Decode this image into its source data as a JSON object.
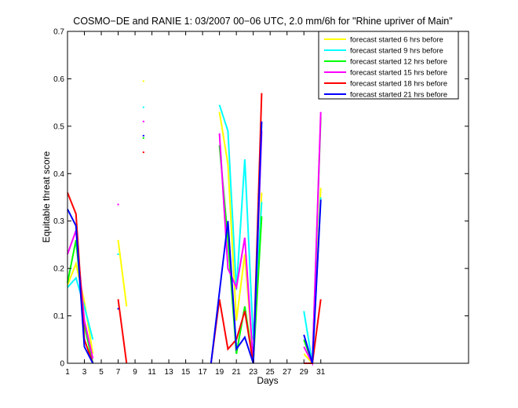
{
  "chart_data": {
    "type": "line",
    "title": "COSMO−DE and RANIE 1: 03/2007 00−06 UTC, 2.0 mm/6h for \"Rhine upriver of Main\"",
    "xlabel": "Days",
    "ylabel": "Equitable threat score",
    "xlim": [
      1,
      48.5
    ],
    "ylim": [
      0,
      0.7
    ],
    "xticks": [
      1,
      3,
      5,
      7,
      9,
      11,
      13,
      15,
      17,
      19,
      21,
      23,
      25,
      27,
      29,
      31
    ],
    "yticks": [
      0,
      0.1,
      0.2,
      0.3,
      0.4,
      0.5,
      0.6,
      0.7
    ],
    "ytick_labels": [
      "0",
      "0.1",
      "0.2",
      "0.3",
      "0.4",
      "0.5",
      "0.6",
      "0.7"
    ],
    "grid": false,
    "legend_position": "top-right",
    "series": [
      {
        "name": "forecast started 6 hrs before",
        "color": "#ffff00",
        "points": [
          [
            1,
            0.165
          ],
          [
            2,
            0.21
          ],
          [
            3,
            0.13
          ],
          [
            4,
            0.02
          ],
          [
            5,
            null
          ],
          [
            7,
            0.26
          ],
          [
            8,
            0.12
          ],
          [
            10,
            0.595
          ],
          [
            18,
            null
          ],
          [
            19,
            0.53
          ],
          [
            20,
            0.42
          ],
          [
            21,
            0.09
          ],
          [
            22,
            0.23
          ],
          [
            23,
            0.0
          ],
          [
            24,
            0.36
          ],
          [
            29,
            0.02
          ],
          [
            30,
            0.0
          ],
          [
            31,
            0.37
          ]
        ]
      },
      {
        "name": "forecast started 9 hrs before",
        "color": "#00ffff",
        "points": [
          [
            1,
            0.16
          ],
          [
            2,
            0.18
          ],
          [
            3,
            0.12
          ],
          [
            4,
            0.05
          ],
          [
            5,
            null
          ],
          [
            7,
            0.23
          ],
          [
            10,
            0.54
          ],
          [
            18,
            null
          ],
          [
            19,
            0.545
          ],
          [
            20,
            0.49
          ],
          [
            21,
            0.155
          ],
          [
            22,
            0.43
          ],
          [
            23,
            0.05
          ],
          [
            24,
            0.34
          ],
          [
            29,
            0.11
          ],
          [
            30,
            0.0
          ],
          [
            31,
            0.35
          ]
        ]
      },
      {
        "name": "forecast started 12 hrs before",
        "color": "#00ff00",
        "points": [
          [
            1,
            0.17
          ],
          [
            2,
            0.26
          ],
          [
            3,
            0.08
          ],
          [
            4,
            0.0
          ],
          [
            5,
            null
          ],
          [
            10,
            0.475
          ],
          [
            18,
            null
          ],
          [
            19,
            0.46
          ],
          [
            20,
            0.26
          ],
          [
            21,
            0.02
          ],
          [
            22,
            0.12
          ],
          [
            23,
            0.0
          ],
          [
            24,
            0.31
          ],
          [
            29,
            0.05
          ],
          [
            30,
            0.0
          ],
          [
            31,
            0.52
          ]
        ]
      },
      {
        "name": "forecast started 15 hrs before",
        "color": "#ff00ff",
        "points": [
          [
            1,
            0.23
          ],
          [
            2,
            0.28
          ],
          [
            3,
            0.09
          ],
          [
            4,
            0.01
          ],
          [
            5,
            null
          ],
          [
            7,
            0.335
          ],
          [
            10,
            0.51
          ],
          [
            18,
            null
          ],
          [
            19,
            0.485
          ],
          [
            20,
            0.2
          ],
          [
            21,
            0.16
          ],
          [
            22,
            0.265
          ],
          [
            23,
            0.0
          ],
          [
            24,
            0.49
          ],
          [
            29,
            0.035
          ],
          [
            30,
            0.0
          ],
          [
            31,
            0.53
          ]
        ]
      },
      {
        "name": "forecast started 18 hrs before",
        "color": "#ff0000",
        "points": [
          [
            1,
            0.36
          ],
          [
            2,
            0.315
          ],
          [
            3,
            0.05
          ],
          [
            4,
            0.0
          ],
          [
            5,
            null
          ],
          [
            7,
            0.135
          ],
          [
            8,
            0.0
          ],
          [
            10,
            0.445
          ],
          [
            18,
            0.0
          ],
          [
            19,
            0.135
          ],
          [
            20,
            0.03
          ],
          [
            21,
            0.05
          ],
          [
            22,
            0.11
          ],
          [
            23,
            0.0
          ],
          [
            24,
            0.57
          ],
          [
            29,
            0.0
          ],
          [
            30,
            0.0
          ],
          [
            31,
            0.135
          ]
        ]
      },
      {
        "name": "forecast started 21 hrs before",
        "color": "#0000ff",
        "points": [
          [
            1,
            0.325
          ],
          [
            2,
            0.29
          ],
          [
            3,
            0.035
          ],
          [
            4,
            0.0
          ],
          [
            5,
            null
          ],
          [
            7,
            0.115
          ],
          [
            10,
            0.48
          ],
          [
            18,
            0.0
          ],
          [
            19,
            0.15
          ],
          [
            20,
            0.3
          ],
          [
            21,
            0.03
          ],
          [
            22,
            0.055
          ],
          [
            23,
            0.0
          ],
          [
            24,
            0.51
          ],
          [
            29,
            0.06
          ],
          [
            30,
            0.0
          ],
          [
            31,
            0.345
          ]
        ]
      }
    ]
  }
}
